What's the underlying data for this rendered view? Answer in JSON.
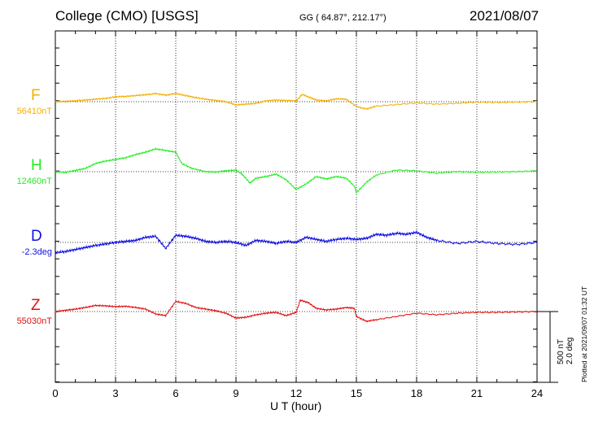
{
  "header": {
    "title_left": "College (CMO)  [USGS]",
    "title_center": "GG ( 64.87°, 212.17°)",
    "title_right": "2021/08/07",
    "plotted": "Plotted at 2021/09/07 01:32 UT"
  },
  "chart_data": {
    "type": "line",
    "xlabel": "U T (hour)",
    "xlim": [
      0,
      24
    ],
    "xticks": [
      "0",
      "3",
      "6",
      "9",
      "12",
      "15",
      "18",
      "21",
      "24"
    ],
    "grid": true,
    "scale_bar": {
      "line1": "500 nT",
      "line2": "2.0 deg",
      "nT_value": 500,
      "deg_value": 2.0
    },
    "series": [
      {
        "name": "F",
        "baseline_label": "56410nT",
        "color": "#f5b000",
        "x": [
          0,
          0.5,
          1,
          1.5,
          2,
          2.5,
          3,
          3.5,
          4,
          4.5,
          5,
          5.5,
          6,
          6.5,
          7,
          7.5,
          8,
          8.5,
          9,
          9.5,
          10,
          10.5,
          11,
          11.5,
          12,
          12.3,
          12.7,
          13,
          13.5,
          14,
          14.5,
          15,
          15.5,
          16,
          17,
          18,
          19,
          20,
          21,
          22,
          23,
          24
        ],
        "y": [
          0,
          10,
          20,
          40,
          60,
          80,
          120,
          130,
          150,
          170,
          200,
          160,
          200,
          150,
          100,
          60,
          30,
          0,
          -80,
          -60,
          -40,
          20,
          40,
          30,
          20,
          180,
          100,
          40,
          20,
          70,
          60,
          -120,
          -180,
          -110,
          -70,
          -30,
          -60,
          -40,
          -10,
          -20,
          -10,
          0
        ]
      },
      {
        "name": "H",
        "baseline_label": "12460nT",
        "color": "#22ee22",
        "x": [
          0,
          0.5,
          1,
          1.5,
          2,
          2.5,
          3,
          3.5,
          4,
          4.5,
          5,
          5.5,
          6,
          6.3,
          6.8,
          7.5,
          8,
          8.5,
          9,
          9.3,
          9.7,
          10,
          10.5,
          11,
          11.5,
          12,
          12.5,
          13,
          13.5,
          14,
          14.5,
          14.9,
          15,
          15.5,
          16,
          17,
          18,
          19,
          20,
          21,
          22,
          23,
          24
        ],
        "y": [
          0,
          -20,
          30,
          80,
          200,
          260,
          300,
          340,
          420,
          480,
          560,
          520,
          480,
          200,
          80,
          0,
          -10,
          20,
          40,
          -60,
          -280,
          -160,
          -120,
          -60,
          -200,
          -440,
          -300,
          -120,
          -180,
          -120,
          -160,
          -360,
          -520,
          -260,
          -80,
          40,
          20,
          -40,
          0,
          -20,
          -10,
          0,
          20
        ]
      },
      {
        "name": "D",
        "baseline_label": "-2.3deg",
        "color": "#1010e0",
        "x": [
          0,
          0.5,
          1,
          1.5,
          2,
          2.5,
          3,
          3.5,
          4,
          4.5,
          5,
          5.5,
          6,
          6.5,
          7,
          7.5,
          8,
          8.5,
          9,
          9.5,
          10,
          10.5,
          11,
          11.5,
          12,
          12.5,
          13,
          13.5,
          14,
          14.5,
          15,
          15.5,
          16,
          16.5,
          17,
          17.5,
          18,
          18.5,
          19,
          20,
          21,
          22,
          23,
          24
        ],
        "y": [
          -1.0,
          -0.9,
          -0.7,
          -0.5,
          -0.3,
          -0.15,
          0,
          0.1,
          0.2,
          0.5,
          0.6,
          -0.6,
          0.7,
          0.6,
          0.4,
          0.1,
          0,
          0.1,
          0.0,
          -0.3,
          0.2,
          0.1,
          -0.1,
          0.1,
          0,
          0.5,
          0.3,
          0.1,
          0.3,
          0.4,
          0.3,
          0.4,
          0.8,
          0.7,
          0.9,
          0.8,
          1.0,
          0.5,
          0.2,
          -0.1,
          0.1,
          -0.1,
          -0.2,
          0
        ]
      },
      {
        "name": "Z",
        "baseline_label": "55030nT",
        "color": "#e01010",
        "x": [
          0,
          0.5,
          1,
          1.5,
          2,
          2.5,
          3,
          3.5,
          4,
          4.5,
          5,
          5.5,
          6,
          6.5,
          7,
          7.5,
          8,
          8.5,
          9,
          9.5,
          10,
          10.5,
          11,
          11.5,
          12,
          12.2,
          12.6,
          13,
          13.5,
          14,
          14.5,
          14.9,
          15,
          15.5,
          16,
          17,
          18,
          19,
          20,
          21,
          22,
          23,
          24
        ],
        "y": [
          0,
          30,
          60,
          100,
          150,
          140,
          120,
          130,
          100,
          60,
          -60,
          -100,
          250,
          200,
          100,
          60,
          20,
          -40,
          -160,
          -140,
          -80,
          -40,
          -20,
          -100,
          -20,
          280,
          220,
          80,
          40,
          60,
          100,
          80,
          -120,
          -240,
          -200,
          -120,
          -40,
          -80,
          -40,
          -20,
          -20,
          -10,
          0
        ]
      }
    ]
  }
}
